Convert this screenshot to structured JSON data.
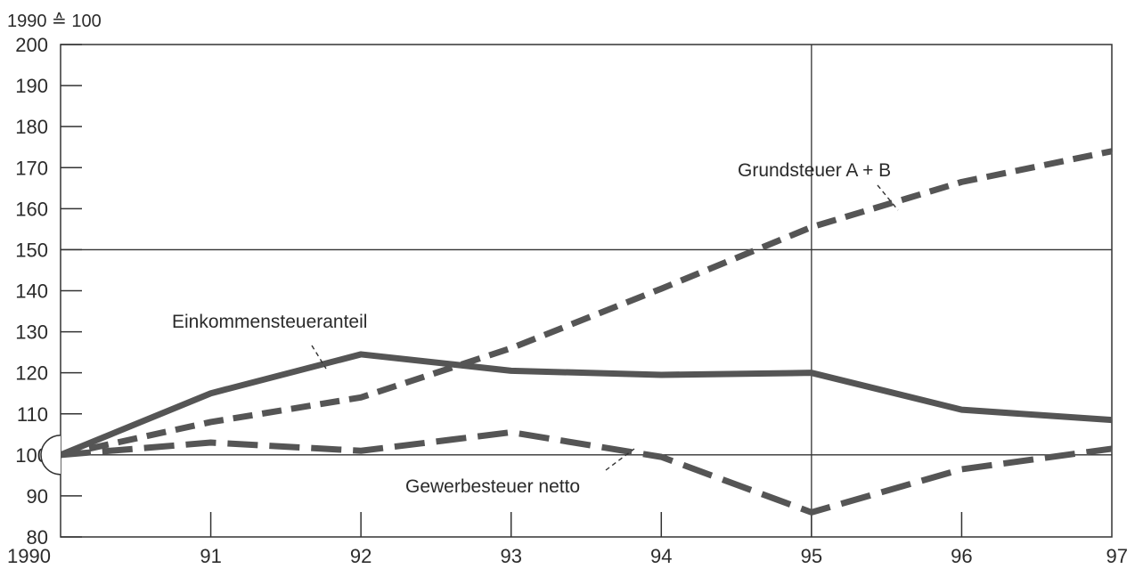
{
  "chart_data": {
    "type": "line",
    "unit_label": "1990 ≙ 100",
    "x": [
      "1990",
      "91",
      "92",
      "93",
      "94",
      "95",
      "96",
      "97"
    ],
    "ylim": [
      80,
      200
    ],
    "y_ticks": [
      "80",
      "90",
      "100",
      "110",
      "120",
      "130",
      "140",
      "150",
      "160",
      "170",
      "180",
      "190",
      "200"
    ],
    "grid": {
      "horizontal_at": [
        100,
        150
      ],
      "vertical_at": [
        "95"
      ]
    },
    "series": [
      {
        "name": "Einkommensteueranteil",
        "style": "solid",
        "color": "#555555",
        "values": [
          100,
          115,
          124.5,
          120.5,
          119.5,
          120,
          111,
          108.5
        ]
      },
      {
        "name": "Grundsteuer A + B",
        "style": "dashed",
        "color": "#555555",
        "values": [
          100,
          108,
          114,
          126,
          140.5,
          155.5,
          166.5,
          174
        ]
      },
      {
        "name": "Gewerbesteuer netto",
        "style": "long-dashed",
        "color": "#555555",
        "values": [
          100,
          103,
          101,
          105.5,
          99.5,
          86,
          96.5,
          101.5
        ]
      }
    ]
  }
}
